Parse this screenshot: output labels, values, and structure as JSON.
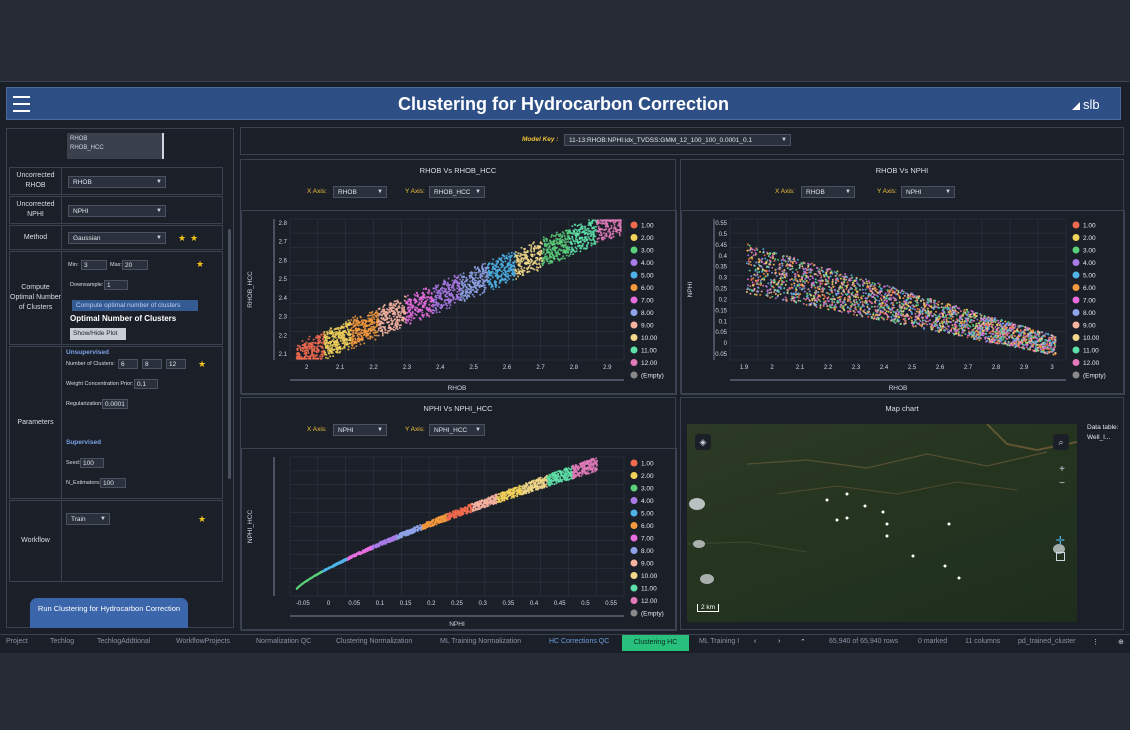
{
  "header": {
    "title": "Clustering for Hydrocarbon Correction"
  },
  "sidebar": {
    "curves_list": [
      "RHOB",
      "RHOB_HCC"
    ],
    "uncorrected_rhob_label": "Uncorrected RHOB",
    "uncorrected_rhob_value": "RHOB",
    "uncorrected_nphi_label": "Uncorrected NPHI",
    "uncorrected_nphi_value": "NPHI",
    "method_label": "Method",
    "method_value": "Gaussian",
    "compute_label": "Compute Optimal Number of Clusters",
    "min_label": "Min:",
    "min_value": "3",
    "max_label": "Max:",
    "max_value": "20",
    "downsample_label": "Downsample:",
    "downsample_value": "1",
    "compute_button": "Compute optimal number of clusters",
    "optimal_heading": "Optimal Number of Clusters",
    "showhide_button": "Show/Hide Plot",
    "parameters_label": "Parameters",
    "unsupervised_label": "Unsupervised",
    "num_clusters_label": "Number of Clusters:",
    "num_clusters_values": [
      "6",
      "8",
      "12"
    ],
    "wcp_label": "Weight Concentration Prior:",
    "wcp_value": "0.1",
    "reg_label": "Regularization:",
    "reg_value": "0.0001",
    "supervised_label": "Supervised",
    "seed_label": "Seed:",
    "seed_value": "100",
    "nest_label": "N_Estimators:",
    "nest_value": "100",
    "workflow_label": "Workflow",
    "workflow_value": "Train",
    "run_button": "Run Clustering for Hydrocarbon Correction"
  },
  "model_key": {
    "label": "Model Key :",
    "value": "11-13:RHOB:NPHI:idx_TVDSS:GMM_12_100_100_0.0001_0.1"
  },
  "colors": {
    "clusters": [
      "#f26b4f",
      "#f3d25a",
      "#5bd07a",
      "#a97be8",
      "#4fb3e8",
      "#f59a3e",
      "#e86ee0",
      "#8fa3e8",
      "#f7b3a0",
      "#f2d88a",
      "#5ee0a8",
      "#e07ab8",
      "#8a8a8a"
    ]
  },
  "legend": [
    "1.00",
    "2.00",
    "3.00",
    "4.00",
    "5.00",
    "6.00",
    "7.00",
    "8.00",
    "9.00",
    "10.00",
    "11.00",
    "12.00",
    "(Empty)"
  ],
  "plots": {
    "p1": {
      "title": "RHOB Vs RHOB_HCC",
      "xaxis_label": "X Axis:",
      "xaxis_value": "RHOB",
      "yaxis_label": "Y Axis:",
      "yaxis_value": "RHOB_HCC",
      "xlabel": "RHOB",
      "ylabel": "RHOB_HCC",
      "xticks": [
        "2",
        "2.1",
        "2.2",
        "2.3",
        "2.4",
        "2.5",
        "2.6",
        "2.7",
        "2.8",
        "2.9"
      ],
      "yticks": [
        "2.8",
        "2.7",
        "2.6",
        "2.5",
        "2.4",
        "2.3",
        "2.2",
        "2.1"
      ]
    },
    "p2": {
      "title": "RHOB Vs NPHI",
      "xaxis_label": "X Axis:",
      "xaxis_value": "RHOB",
      "yaxis_label": "Y Axis:",
      "yaxis_value": "NPHI",
      "xlabel": "RHOB",
      "ylabel": "NPHI",
      "xticks": [
        "1.9",
        "2",
        "2.1",
        "2.2",
        "2.3",
        "2.4",
        "2.5",
        "2.6",
        "2.7",
        "2.8",
        "2.9",
        "3"
      ],
      "yticks": [
        "0.55",
        "0.5",
        "0.45",
        "0.4",
        "0.35",
        "0.3",
        "0.25",
        "0.2",
        "0.15",
        "0.1",
        "0.05",
        "0",
        "-0.05"
      ]
    },
    "p3": {
      "title": "NPHI Vs NPHI_HCC",
      "xaxis_label": "X Axis:",
      "xaxis_value": "NPHI",
      "yaxis_label": "Y Axis:",
      "yaxis_value": "NPHI_HCC",
      "xlabel": "NPHI",
      "ylabel": "NPHI_HCC",
      "xticks": [
        "-0.05",
        "0",
        "0.05",
        "0.1",
        "0.15",
        "0.2",
        "0.25",
        "0.3",
        "0.35",
        "0.4",
        "0.45",
        "0.5",
        "0.55"
      ],
      "yticks": []
    }
  },
  "map": {
    "title": "Map chart",
    "data_table_label": "Data table:",
    "data_table_value": "Well_I...",
    "scale": "2 km"
  },
  "tabs": [
    "Project",
    "Techlog",
    "TechlogAddtional",
    "WorkflowProjects",
    "Normalization QC",
    "Clustering Normalization",
    "ML Training Normalization",
    "HC Corrections QC",
    "Clustering HC",
    "ML Training I"
  ],
  "active_tab": "Clustering HC",
  "status": {
    "rows": "65,940 of 65,940 rows",
    "marked": "0 marked",
    "columns": "11 columns",
    "table": "pd_trained_cluster"
  }
}
